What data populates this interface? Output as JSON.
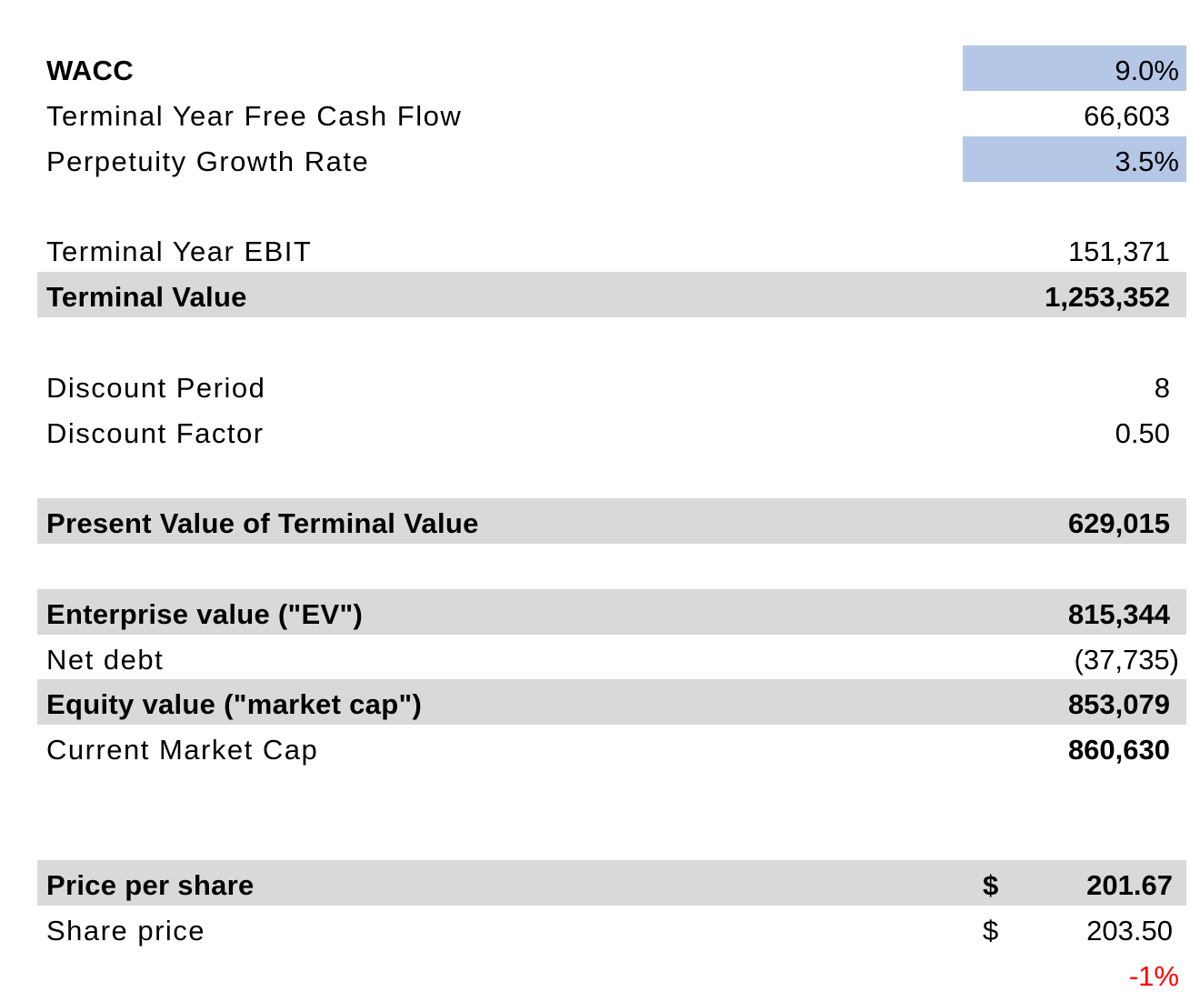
{
  "sheet": {
    "wacc": {
      "label": "WACC",
      "value": "9.0%"
    },
    "terminal_fcf": {
      "label": "Terminal Year Free Cash Flow",
      "value": "66,603"
    },
    "growth_rate": {
      "label": "Perpetuity Growth Rate",
      "value": "3.5%"
    },
    "terminal_ebit": {
      "label": "Terminal Year EBIT",
      "value": "151,371"
    },
    "terminal_value": {
      "label": "Terminal Value",
      "value": "1,253,352"
    },
    "discount_period": {
      "label": "Discount Period",
      "value": "8"
    },
    "discount_factor": {
      "label": "Discount Factor",
      "value": "0.50"
    },
    "pv_terminal_value": {
      "label": "Present Value of Terminal Value",
      "value": "629,015"
    },
    "enterprise_value": {
      "label": "Enterprise value (\"EV\")",
      "value": "815,344"
    },
    "net_debt": {
      "label": "Net debt",
      "value": "(37,735)"
    },
    "equity_value": {
      "label": "Equity value (\"market cap\")",
      "value": "853,079"
    },
    "current_market_cap": {
      "label": "Current Market Cap",
      "value": "860,630"
    },
    "price_per_share": {
      "label": "Price per share",
      "currency": "$",
      "value": "201.67"
    },
    "share_price": {
      "label": "Share price",
      "currency": "$",
      "value": "203.50"
    },
    "upside": {
      "value": "-1%"
    }
  },
  "colors": {
    "input_fill": "#b4c7e7",
    "total_fill": "#d9d9d9",
    "negative_text": "#ff0000"
  }
}
